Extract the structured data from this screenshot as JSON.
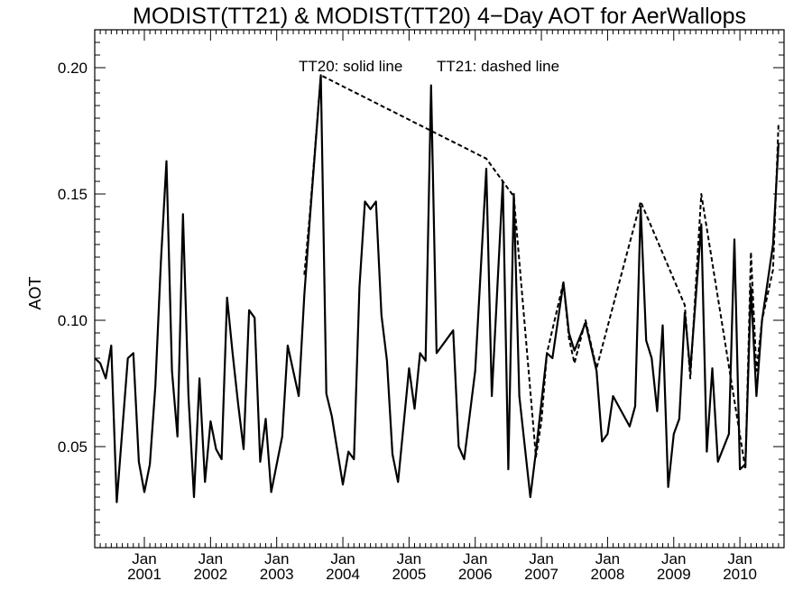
{
  "chart_data": {
    "type": "line",
    "title": "MODIST(TT21) & MODIST(TT20) 4−Day AOT for AerWallops",
    "xlabel": "",
    "ylabel": "AOT",
    "xlim": [
      "2000-04",
      "2010-09"
    ],
    "ylim": [
      0.01,
      0.215
    ],
    "yticks": [
      0.05,
      0.1,
      0.15,
      0.2
    ],
    "ytick_labels": [
      "0.05",
      "0.10",
      "0.15",
      "0.20"
    ],
    "xticks": [
      {
        "month": "Jan",
        "year": "2001",
        "date": "2001-01"
      },
      {
        "month": "Jan",
        "year": "2002",
        "date": "2002-01"
      },
      {
        "month": "Jan",
        "year": "2003",
        "date": "2003-01"
      },
      {
        "month": "Jan",
        "year": "2004",
        "date": "2004-01"
      },
      {
        "month": "Jan",
        "year": "2005",
        "date": "2005-01"
      },
      {
        "month": "Jan",
        "year": "2006",
        "date": "2006-01"
      },
      {
        "month": "Jan",
        "year": "2007",
        "date": "2007-01"
      },
      {
        "month": "Jan",
        "year": "2008",
        "date": "2008-01"
      },
      {
        "month": "Jan",
        "year": "2009",
        "date": "2009-01"
      },
      {
        "month": "Jan",
        "year": "2010",
        "date": "2010-01"
      }
    ],
    "annotations": [
      "TT20: solid line",
      "TT21: dashed line"
    ],
    "grid": false,
    "series": [
      {
        "name": "TT20",
        "style": "solid",
        "color": "#000000",
        "points": [
          [
            "2000-04",
            0.085
          ],
          [
            "2000-05",
            0.083
          ],
          [
            "2000-06",
            0.077
          ],
          [
            "2000-07",
            0.09
          ],
          [
            "2000-08",
            0.028
          ],
          [
            "2000-10",
            0.085
          ],
          [
            "2000-11",
            0.087
          ],
          [
            "2000-12",
            0.044
          ],
          [
            "2001-01",
            0.032
          ],
          [
            "2001-02",
            0.043
          ],
          [
            "2001-03",
            0.074
          ],
          [
            "2001-04",
            0.123
          ],
          [
            "2001-05",
            0.163
          ],
          [
            "2001-06",
            0.08
          ],
          [
            "2001-07",
            0.054
          ],
          [
            "2001-08",
            0.142
          ],
          [
            "2001-09",
            0.07
          ],
          [
            "2001-10",
            0.03
          ],
          [
            "2001-11",
            0.077
          ],
          [
            "2001-12",
            0.036
          ],
          [
            "2002-01",
            0.06
          ],
          [
            "2002-02",
            0.049
          ],
          [
            "2002-03",
            0.045
          ],
          [
            "2002-04",
            0.109
          ],
          [
            "2002-05",
            0.087
          ],
          [
            "2002-06",
            0.067
          ],
          [
            "2002-07",
            0.049
          ],
          [
            "2002-08",
            0.104
          ],
          [
            "2002-09",
            0.101
          ],
          [
            "2002-10",
            0.044
          ],
          [
            "2002-11",
            0.061
          ],
          [
            "2002-12",
            0.032
          ],
          [
            "2003-02",
            0.054
          ],
          [
            "2003-03",
            0.09
          ],
          [
            "2003-05",
            0.07
          ],
          [
            "2003-06",
            0.11
          ],
          [
            "2003-07",
            0.14
          ],
          [
            "2003-09",
            0.197
          ],
          [
            "2003-10",
            0.071
          ],
          [
            "2003-11",
            0.062
          ],
          [
            "2004-01",
            0.035
          ],
          [
            "2004-02",
            0.048
          ],
          [
            "2004-03",
            0.045
          ],
          [
            "2004-04",
            0.113
          ],
          [
            "2004-05",
            0.147
          ],
          [
            "2004-06",
            0.144
          ],
          [
            "2004-07",
            0.147
          ],
          [
            "2004-08",
            0.102
          ],
          [
            "2004-09",
            0.084
          ],
          [
            "2004-10",
            0.047
          ],
          [
            "2004-11",
            0.036
          ],
          [
            "2005-01",
            0.081
          ],
          [
            "2005-02",
            0.065
          ],
          [
            "2005-03",
            0.087
          ],
          [
            "2005-04",
            0.084
          ],
          [
            "2005-05",
            0.193
          ],
          [
            "2005-06",
            0.087
          ],
          [
            "2005-09",
            0.096
          ],
          [
            "2005-10",
            0.05
          ],
          [
            "2005-11",
            0.045
          ],
          [
            "2006-01",
            0.08
          ],
          [
            "2006-03",
            0.16
          ],
          [
            "2006-04",
            0.07
          ],
          [
            "2006-06",
            0.155
          ],
          [
            "2006-07",
            0.041
          ],
          [
            "2006-08",
            0.15
          ],
          [
            "2006-09",
            0.07
          ],
          [
            "2006-11",
            0.03
          ],
          [
            "2006-12",
            0.048
          ],
          [
            "2007-02",
            0.087
          ],
          [
            "2007-03",
            0.085
          ],
          [
            "2007-05",
            0.115
          ],
          [
            "2007-06",
            0.095
          ],
          [
            "2007-07",
            0.088
          ],
          [
            "2007-09",
            0.099
          ],
          [
            "2007-11",
            0.08
          ],
          [
            "2007-12",
            0.052
          ],
          [
            "2008-01",
            0.055
          ],
          [
            "2008-02",
            0.07
          ],
          [
            "2008-05",
            0.058
          ],
          [
            "2008-06",
            0.066
          ],
          [
            "2008-07",
            0.145
          ],
          [
            "2008-08",
            0.092
          ],
          [
            "2008-09",
            0.085
          ],
          [
            "2008-10",
            0.064
          ],
          [
            "2008-11",
            0.098
          ],
          [
            "2008-12",
            0.034
          ],
          [
            "2009-01",
            0.055
          ],
          [
            "2009-02",
            0.061
          ],
          [
            "2009-03",
            0.103
          ],
          [
            "2009-04",
            0.08
          ],
          [
            "2009-06",
            0.138
          ],
          [
            "2009-07",
            0.048
          ],
          [
            "2009-08",
            0.081
          ],
          [
            "2009-09",
            0.044
          ],
          [
            "2009-11",
            0.055
          ],
          [
            "2009-12",
            0.132
          ],
          [
            "2010-01",
            0.041
          ],
          [
            "2010-02",
            0.043
          ],
          [
            "2010-03",
            0.113
          ],
          [
            "2010-04",
            0.07
          ],
          [
            "2010-05",
            0.1
          ],
          [
            "2010-07",
            0.13
          ],
          [
            "2010-08",
            0.17
          ]
        ]
      },
      {
        "name": "TT21",
        "style": "dashed",
        "color": "#000000",
        "points": [
          [
            "2003-06",
            0.118
          ],
          [
            "2003-07",
            0.142
          ],
          [
            "2003-09",
            0.197
          ],
          [
            "2006-03",
            0.164
          ],
          [
            "2006-08",
            0.149
          ],
          [
            "2006-12",
            0.046
          ],
          [
            "2007-01",
            0.06
          ],
          [
            "2007-02",
            0.087
          ],
          [
            "2007-05",
            0.115
          ],
          [
            "2007-06",
            0.093
          ],
          [
            "2007-07",
            0.083
          ],
          [
            "2007-09",
            0.1
          ],
          [
            "2007-11",
            0.081
          ],
          [
            "2008-07",
            0.147
          ],
          [
            "2009-03",
            0.106
          ],
          [
            "2009-04",
            0.077
          ],
          [
            "2009-06",
            0.15
          ],
          [
            "2010-02",
            0.041
          ],
          [
            "2010-03",
            0.127
          ],
          [
            "2010-04",
            0.08
          ],
          [
            "2010-05",
            0.1
          ],
          [
            "2010-07",
            0.12
          ],
          [
            "2010-08",
            0.178
          ]
        ]
      }
    ]
  }
}
